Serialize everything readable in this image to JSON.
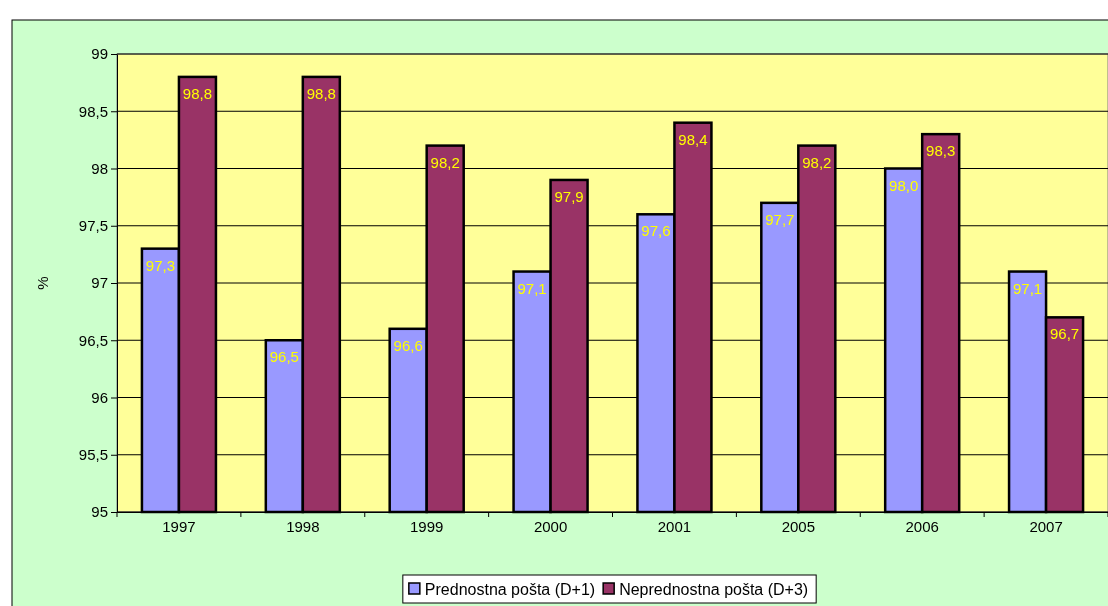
{
  "chart_data": {
    "type": "bar",
    "ylabel": "%",
    "categories": [
      "1997",
      "1998",
      "1999",
      "2000",
      "2001",
      "2005",
      "2006",
      "2007"
    ],
    "series": [
      {
        "name": "Prednostna pošta (D+1)",
        "color": "#9999ff",
        "values": [
          97.3,
          96.5,
          96.6,
          97.1,
          97.6,
          97.7,
          98.0,
          97.1
        ],
        "value_labels": [
          "97,3",
          "96,5",
          "96,6",
          "97,1",
          "97,6",
          "97,7",
          "98,0",
          "97,1"
        ]
      },
      {
        "name": "Neprednostna pošta (D+3)",
        "color": "#993366",
        "values": [
          98.8,
          98.8,
          98.2,
          97.9,
          98.4,
          98.2,
          98.3,
          96.7
        ],
        "value_labels": [
          "98,8",
          "98,8",
          "98,2",
          "97,9",
          "98,4",
          "98,2",
          "98,3",
          "96,7"
        ]
      }
    ],
    "ylim": [
      95,
      99
    ],
    "yticks": [
      95,
      {
        "value": 95.5,
        "label": "95,5"
      },
      96,
      {
        "value": 96.5,
        "label": "96,5"
      },
      97,
      {
        "value": 97.5,
        "label": "97,5"
      },
      98,
      {
        "value": 98.5,
        "label": "98,5"
      },
      99
    ],
    "grid": "y",
    "legend": "bottom"
  }
}
